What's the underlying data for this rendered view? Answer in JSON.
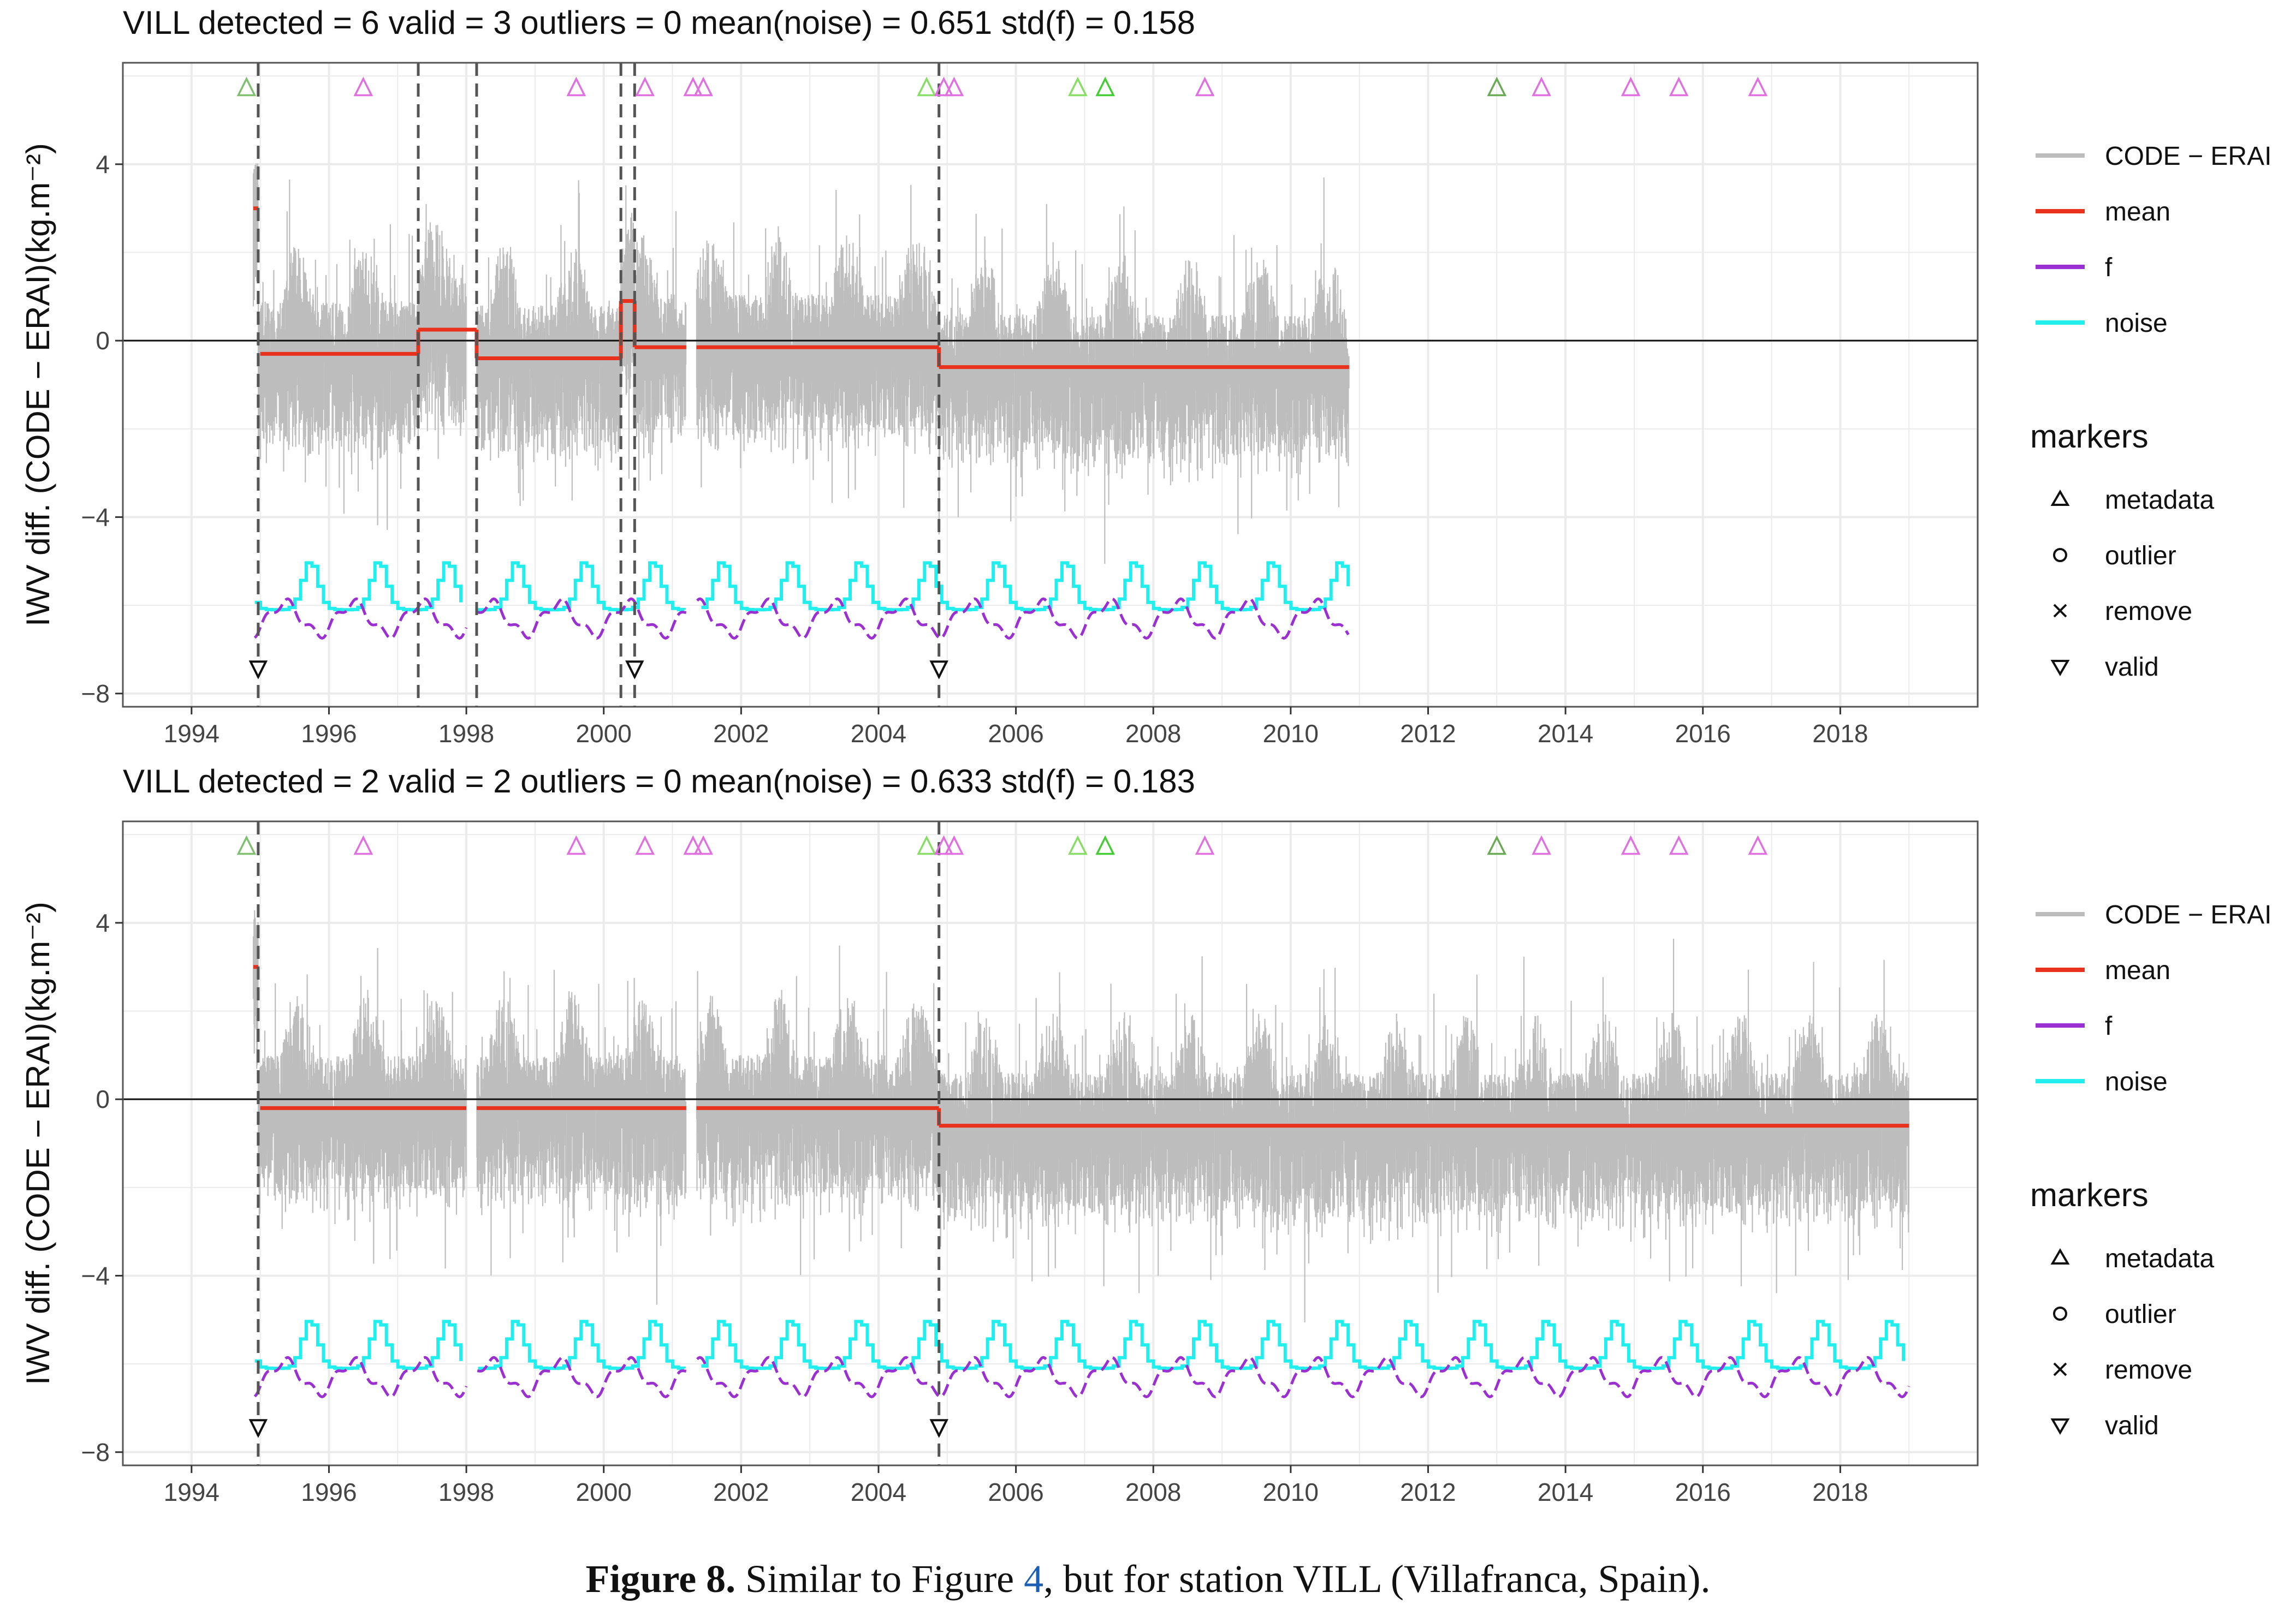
{
  "chart_data": [
    {
      "type": "line",
      "title": "VILL      detected = 6   valid = 3   outliers = 0   mean(noise) = 0.651   std(f) = 0.158",
      "ylabel": "IWV diff. (CODE − ERAI)(kg.m⁻²)",
      "xlim": [
        1993.0,
        2020.0
      ],
      "ylim": [
        -8.3,
        6.3
      ],
      "xticks": [
        "1994",
        "1996",
        "1998",
        "2000",
        "2002",
        "2004",
        "2006",
        "2008",
        "2010",
        "2012",
        "2014",
        "2016",
        "2018"
      ],
      "yticks": [
        "−8",
        "−4",
        "0",
        "4"
      ],
      "data_range": [
        1994.9,
        2010.85
      ],
      "detected_breaks": [
        1994.97,
        1997.3,
        1998.15,
        2000.25,
        2000.45,
        2004.88
      ],
      "valid_breaks": [
        1994.97,
        2000.45,
        2004.88
      ],
      "mean_segments": [
        {
          "start": 1994.9,
          "end": 1994.97,
          "value": 3.0
        },
        {
          "start": 1995.0,
          "end": 1997.3,
          "value": -0.3
        },
        {
          "start": 1997.3,
          "end": 1998.15,
          "value": 0.25
        },
        {
          "start": 1998.15,
          "end": 2000.25,
          "value": -0.4
        },
        {
          "start": 2000.25,
          "end": 2000.45,
          "value": 0.9
        },
        {
          "start": 2000.45,
          "end": 2001.2,
          "value": -0.15
        },
        {
          "start": 2001.35,
          "end": 2004.88,
          "value": -0.15
        },
        {
          "start": 2004.88,
          "end": 2010.85,
          "value": -0.6
        }
      ],
      "metadata_markers": [
        {
          "x": 1994.8,
          "color": "#7fbf6f"
        },
        {
          "x": 1996.5,
          "color": "#e070e0"
        },
        {
          "x": 1999.6,
          "color": "#e070e0"
        },
        {
          "x": 2000.6,
          "color": "#e070e0"
        },
        {
          "x": 2001.3,
          "color": "#e070e0"
        },
        {
          "x": 2001.45,
          "color": "#e070e0"
        },
        {
          "x": 2004.7,
          "color": "#88dd66"
        },
        {
          "x": 2004.95,
          "color": "#e070e0"
        },
        {
          "x": 2005.1,
          "color": "#e070e0"
        },
        {
          "x": 2006.9,
          "color": "#88dd66"
        },
        {
          "x": 2007.3,
          "color": "#44cc33"
        },
        {
          "x": 2008.75,
          "color": "#e070e0"
        },
        {
          "x": 2013.0,
          "color": "#6aaa55"
        },
        {
          "x": 2013.65,
          "color": "#e070e0"
        },
        {
          "x": 2014.95,
          "color": "#e070e0"
        },
        {
          "x": 2015.65,
          "color": "#e070e0"
        },
        {
          "x": 2016.8,
          "color": "#e070e0"
        }
      ],
      "noise_level": {
        "base": -6.1,
        "amplitude": 1.1
      },
      "f_level": {
        "base": -6.3,
        "amplitude": 0.35
      },
      "legend": [
        "CODE − ERAI",
        "mean",
        "f",
        "noise"
      ],
      "markers_legend_title": "markers",
      "markers_legend": [
        "metadata",
        "outlier",
        "remove",
        "valid"
      ]
    },
    {
      "type": "line",
      "title": "VILL      detected = 2   valid = 2   outliers = 0   mean(noise) = 0.633   std(f) = 0.183",
      "ylabel": "IWV diff. (CODE − ERAI)(kg.m⁻²)",
      "xlim": [
        1993.0,
        2020.0
      ],
      "ylim": [
        -8.3,
        6.3
      ],
      "xticks": [
        "1994",
        "1996",
        "1998",
        "2000",
        "2002",
        "2004",
        "2006",
        "2008",
        "2010",
        "2012",
        "2014",
        "2016",
        "2018"
      ],
      "yticks": [
        "−8",
        "−4",
        "0",
        "4"
      ],
      "data_range": [
        1994.9,
        2019.0
      ],
      "detected_breaks": [
        1994.97,
        2004.88
      ],
      "valid_breaks": [
        1994.97,
        2004.88
      ],
      "mean_segments": [
        {
          "start": 1994.9,
          "end": 1994.97,
          "value": 3.0
        },
        {
          "start": 1995.0,
          "end": 1998.0,
          "value": -0.2
        },
        {
          "start": 1998.15,
          "end": 2001.2,
          "value": -0.2
        },
        {
          "start": 2001.35,
          "end": 2004.88,
          "value": -0.2
        },
        {
          "start": 2004.88,
          "end": 2019.0,
          "value": -0.6
        }
      ],
      "metadata_markers": [
        {
          "x": 1994.8,
          "color": "#7fbf6f"
        },
        {
          "x": 1996.5,
          "color": "#e070e0"
        },
        {
          "x": 1999.6,
          "color": "#e070e0"
        },
        {
          "x": 2000.6,
          "color": "#e070e0"
        },
        {
          "x": 2001.3,
          "color": "#e070e0"
        },
        {
          "x": 2001.45,
          "color": "#e070e0"
        },
        {
          "x": 2004.7,
          "color": "#88dd66"
        },
        {
          "x": 2004.95,
          "color": "#e070e0"
        },
        {
          "x": 2005.1,
          "color": "#e070e0"
        },
        {
          "x": 2006.9,
          "color": "#88dd66"
        },
        {
          "x": 2007.3,
          "color": "#44cc33"
        },
        {
          "x": 2008.75,
          "color": "#e070e0"
        },
        {
          "x": 2013.0,
          "color": "#6aaa55"
        },
        {
          "x": 2013.65,
          "color": "#e070e0"
        },
        {
          "x": 2014.95,
          "color": "#e070e0"
        },
        {
          "x": 2015.65,
          "color": "#e070e0"
        },
        {
          "x": 2016.8,
          "color": "#e070e0"
        }
      ],
      "noise_level": {
        "base": -6.1,
        "amplitude": 1.1
      },
      "f_level": {
        "base": -6.3,
        "amplitude": 0.35
      },
      "legend": [
        "CODE − ERAI",
        "mean",
        "f",
        "noise"
      ],
      "markers_legend_title": "markers",
      "markers_legend": [
        "metadata",
        "outlier",
        "remove",
        "valid"
      ]
    }
  ],
  "colors": {
    "raw": "#bdbdbd",
    "mean": "#e8321e",
    "f": "#9b30d0",
    "noise": "#22eeee",
    "grid": "#ebebeb",
    "panel_border": "#555555"
  },
  "caption": {
    "label": "Figure 8.",
    "text_before": " Similar to Figure ",
    "ref": "4",
    "text_after": ", but for station VILL (Villafranca, Spain)."
  }
}
